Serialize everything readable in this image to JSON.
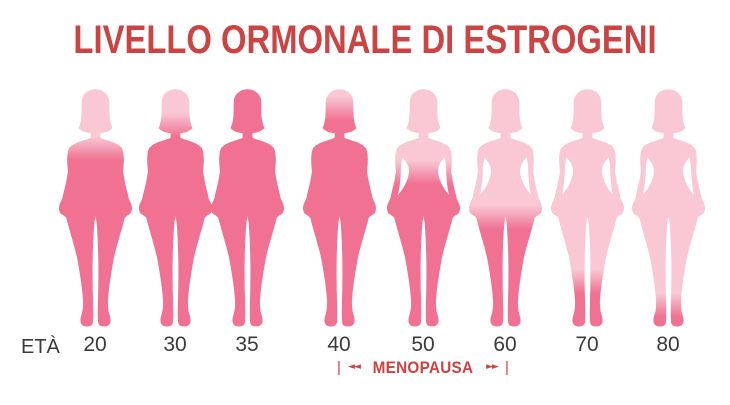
{
  "title": "LIVELLO ORMONALE DI ESTROGENI",
  "axis": {
    "label": "ETÀ"
  },
  "menopause": {
    "left_bar": "|",
    "left_arrows": "◄◄",
    "label": "MENOPAUSA",
    "right_arrows": "►►",
    "right_bar": "|"
  },
  "colors": {
    "title_red": "#cb4343",
    "menopause_red": "#d04040",
    "age_text": "#3a3a3a",
    "fill_high": "#f07191",
    "fill_low": "#f9c8d4",
    "background": "#ffffff"
  },
  "chart_data": {
    "type": "pictogram",
    "title": "LIVELLO ORMONALE DI ESTROGENI",
    "xlabel": "ETÀ",
    "categories": [
      "20",
      "30",
      "35",
      "40",
      "50",
      "60",
      "70",
      "80"
    ],
    "values": [
      0.75,
      0.85,
      1.0,
      0.92,
      0.65,
      0.46,
      0.19,
      0.09
    ],
    "value_meaning": "fraction of the female silhouette filled with dark pink from the feet up, representing relative estrogen hormone level",
    "icon": "female-body-silhouette",
    "legend": "none",
    "figures": [
      {
        "age": "20",
        "estrogen_level": 0.75,
        "fill_from_top": 0.25,
        "waist_gap": false
      },
      {
        "age": "30",
        "estrogen_level": 0.85,
        "fill_from_top": 0.15,
        "waist_gap": false
      },
      {
        "age": "35",
        "estrogen_level": 1.0,
        "fill_from_top": 0.0,
        "waist_gap": false
      },
      {
        "age": "40",
        "estrogen_level": 0.92,
        "fill_from_top": 0.08,
        "waist_gap": false
      },
      {
        "age": "50",
        "estrogen_level": 0.65,
        "fill_from_top": 0.35,
        "waist_gap": true
      },
      {
        "age": "60",
        "estrogen_level": 0.46,
        "fill_from_top": 0.54,
        "waist_gap": true
      },
      {
        "age": "70",
        "estrogen_level": 0.19,
        "fill_from_top": 0.81,
        "waist_gap": true
      },
      {
        "age": "80",
        "estrogen_level": 0.09,
        "fill_from_top": 0.91,
        "waist_gap": true
      }
    ],
    "annotations": [
      {
        "label": "MENOPAUSA",
        "from_age": "40",
        "to_age": "60",
        "style": "red text with double arrows and end bars"
      }
    ]
  }
}
